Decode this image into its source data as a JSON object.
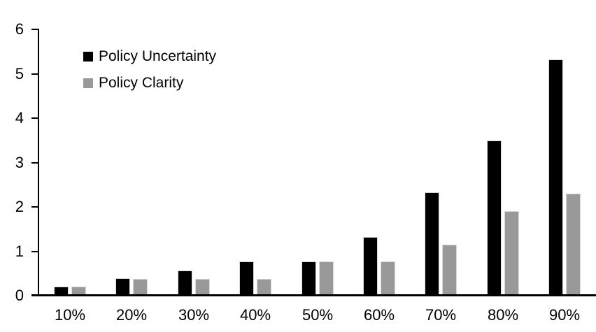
{
  "chart_data": {
    "type": "bar",
    "title": "",
    "xlabel": "",
    "ylabel": "",
    "categories": [
      "10%",
      "20%",
      "30%",
      "40%",
      "50%",
      "60%",
      "70%",
      "80%",
      "90%"
    ],
    "series": [
      {
        "name": "Policy Uncertainty",
        "color": "#000000",
        "values": [
          0.2,
          0.4,
          0.57,
          0.77,
          0.78,
          1.33,
          2.33,
          3.5,
          5.33
        ]
      },
      {
        "name": "Policy Clarity",
        "color": "#999999",
        "values": [
          0.2,
          0.38,
          0.38,
          0.38,
          0.77,
          0.77,
          1.15,
          1.9,
          2.3
        ]
      }
    ],
    "ylim": [
      0,
      6
    ],
    "yticks": [
      0,
      1,
      2,
      3,
      4,
      5,
      6
    ],
    "grid": false,
    "legend_position": "top-left-inside"
  },
  "colors": {
    "background": "#ffffff",
    "axis": "#000000",
    "text": "#000000",
    "bar_border": "#d9d9d9"
  }
}
